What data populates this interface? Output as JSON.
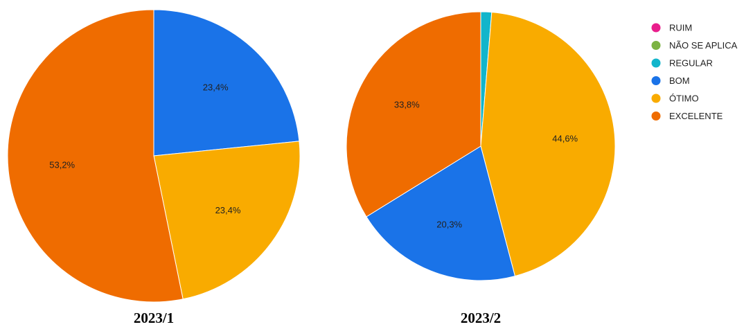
{
  "legend": [
    {
      "name": "RUIM",
      "color": "#e91e8c"
    },
    {
      "name": "NÃO SE APLICA",
      "color": "#7cb342"
    },
    {
      "name": "REGULAR",
      "color": "#12b5cb"
    },
    {
      "name": "BOM",
      "color": "#1a73e8"
    },
    {
      "name": "ÓTIMO",
      "color": "#f9ab00"
    },
    {
      "name": "EXCELENTE",
      "color": "#ef6c00"
    }
  ],
  "chart_data": [
    {
      "type": "pie",
      "title": "2023/1",
      "slices": [
        {
          "category": "BOM",
          "value": 23.4,
          "label": "23,4%"
        },
        {
          "category": "ÓTIMO",
          "value": 23.4,
          "label": "23,4%"
        },
        {
          "category": "EXCELENTE",
          "value": 53.2,
          "label": "53,2%"
        }
      ]
    },
    {
      "type": "pie",
      "title": "2023/2",
      "slices": [
        {
          "category": "REGULAR",
          "value": 1.3,
          "label": ""
        },
        {
          "category": "ÓTIMO",
          "value": 44.6,
          "label": "44,6%"
        },
        {
          "category": "BOM",
          "value": 20.3,
          "label": "20,3%"
        },
        {
          "category": "EXCELENTE",
          "value": 33.8,
          "label": "33,8%"
        }
      ]
    }
  ]
}
